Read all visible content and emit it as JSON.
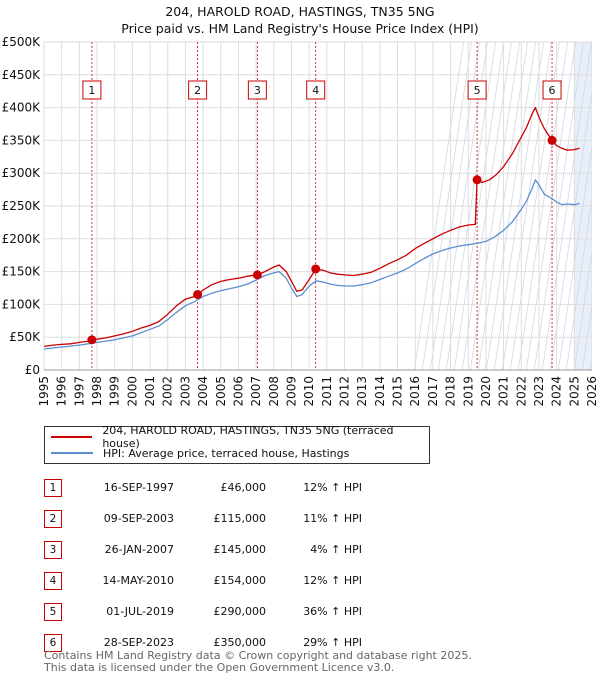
{
  "title_line1": "204, HAROLD ROAD, HASTINGS, TN35 5NG",
  "title_line2": "Price paid vs. HM Land Registry's House Price Index (HPI)",
  "legend": {
    "property": "204, HAROLD ROAD, HASTINGS, TN35 5NG (terraced house)",
    "hpi": "HPI: Average price, terraced house, Hastings"
  },
  "colors": {
    "property": "#cc0000",
    "hpi": "#5b8fd0",
    "grid": "#dddddd",
    "marker_line": "#cc0000",
    "shade": "#e9eff8"
  },
  "chart_data": {
    "type": "line",
    "title": "Price paid vs. HM Land Registry's House Price Index (HPI)",
    "xlabel": "",
    "ylabel": "",
    "xlim": [
      1995,
      2026
    ],
    "ylim": [
      0,
      500000
    ],
    "y_ticks": [
      0,
      50000,
      100000,
      150000,
      200000,
      250000,
      300000,
      350000,
      400000,
      450000,
      500000
    ],
    "y_tick_labels": [
      "£0",
      "£50K",
      "£100K",
      "£150K",
      "£200K",
      "£250K",
      "£300K",
      "£350K",
      "£400K",
      "£450K",
      "£500K"
    ],
    "x_ticks": [
      1995,
      1996,
      1997,
      1998,
      1999,
      2000,
      2001,
      2002,
      2003,
      2004,
      2005,
      2006,
      2007,
      2008,
      2009,
      2010,
      2011,
      2012,
      2013,
      2014,
      2015,
      2016,
      2017,
      2018,
      2019,
      2020,
      2021,
      2022,
      2023,
      2024,
      2025,
      2026
    ],
    "future_start": 2025.0,
    "series": [
      {
        "name": "204, HAROLD ROAD, HASTINGS, TN35 5NG (terraced house)",
        "points": [
          [
            1995.0,
            36000
          ],
          [
            1995.5,
            38000
          ],
          [
            1996.0,
            39000
          ],
          [
            1996.5,
            40000
          ],
          [
            1997.0,
            42000
          ],
          [
            1997.5,
            44000
          ],
          [
            1997.71,
            46000
          ],
          [
            1998.0,
            47000
          ],
          [
            1998.5,
            49000
          ],
          [
            1999.0,
            52000
          ],
          [
            1999.5,
            55000
          ],
          [
            2000.0,
            59000
          ],
          [
            2000.5,
            64000
          ],
          [
            2001.0,
            68000
          ],
          [
            2001.5,
            74000
          ],
          [
            2002.0,
            85000
          ],
          [
            2002.5,
            98000
          ],
          [
            2003.0,
            108000
          ],
          [
            2003.5,
            112000
          ],
          [
            2003.69,
            115000
          ],
          [
            2004.0,
            122000
          ],
          [
            2004.5,
            130000
          ],
          [
            2005.0,
            135000
          ],
          [
            2005.5,
            138000
          ],
          [
            2006.0,
            140000
          ],
          [
            2006.5,
            143000
          ],
          [
            2007.07,
            145000
          ],
          [
            2007.5,
            150000
          ],
          [
            2008.0,
            157000
          ],
          [
            2008.3,
            160000
          ],
          [
            2008.7,
            150000
          ],
          [
            2009.0,
            135000
          ],
          [
            2009.3,
            120000
          ],
          [
            2009.6,
            122000
          ],
          [
            2010.0,
            138000
          ],
          [
            2010.37,
            154000
          ],
          [
            2010.8,
            152000
          ],
          [
            2011.2,
            148000
          ],
          [
            2011.6,
            146000
          ],
          [
            2012.0,
            145000
          ],
          [
            2012.5,
            144000
          ],
          [
            2013.0,
            146000
          ],
          [
            2013.5,
            149000
          ],
          [
            2014.0,
            155000
          ],
          [
            2014.5,
            162000
          ],
          [
            2015.0,
            168000
          ],
          [
            2015.5,
            175000
          ],
          [
            2016.0,
            185000
          ],
          [
            2016.5,
            193000
          ],
          [
            2017.0,
            200000
          ],
          [
            2017.5,
            207000
          ],
          [
            2018.0,
            213000
          ],
          [
            2018.5,
            218000
          ],
          [
            2019.0,
            221000
          ],
          [
            2019.4,
            222000
          ],
          [
            2019.5,
            290000
          ],
          [
            2019.8,
            286000
          ],
          [
            2020.2,
            290000
          ],
          [
            2020.6,
            298000
          ],
          [
            2021.0,
            310000
          ],
          [
            2021.5,
            330000
          ],
          [
            2022.0,
            355000
          ],
          [
            2022.3,
            370000
          ],
          [
            2022.6,
            390000
          ],
          [
            2022.8,
            400000
          ],
          [
            2023.0,
            385000
          ],
          [
            2023.3,
            368000
          ],
          [
            2023.74,
            350000
          ],
          [
            2024.0,
            342000
          ],
          [
            2024.3,
            338000
          ],
          [
            2024.6,
            335000
          ],
          [
            2025.0,
            336000
          ],
          [
            2025.3,
            338000
          ]
        ]
      },
      {
        "name": "HPI: Average price, terraced house, Hastings",
        "points": [
          [
            1995.0,
            32000
          ],
          [
            1995.5,
            33500
          ],
          [
            1996.0,
            35000
          ],
          [
            1996.5,
            36500
          ],
          [
            1997.0,
            38000
          ],
          [
            1997.5,
            40000
          ],
          [
            1998.0,
            42000
          ],
          [
            1998.5,
            44000
          ],
          [
            1999.0,
            46000
          ],
          [
            1999.5,
            49000
          ],
          [
            2000.0,
            52000
          ],
          [
            2000.5,
            57000
          ],
          [
            2001.0,
            62000
          ],
          [
            2001.5,
            67000
          ],
          [
            2002.0,
            77000
          ],
          [
            2002.5,
            88000
          ],
          [
            2003.0,
            98000
          ],
          [
            2003.5,
            104000
          ],
          [
            2004.0,
            112000
          ],
          [
            2004.5,
            117000
          ],
          [
            2005.0,
            121000
          ],
          [
            2005.5,
            124000
          ],
          [
            2006.0,
            127000
          ],
          [
            2006.5,
            131000
          ],
          [
            2007.0,
            137000
          ],
          [
            2007.5,
            144000
          ],
          [
            2008.0,
            148000
          ],
          [
            2008.3,
            150000
          ],
          [
            2008.7,
            140000
          ],
          [
            2009.0,
            125000
          ],
          [
            2009.3,
            112000
          ],
          [
            2009.6,
            115000
          ],
          [
            2010.0,
            128000
          ],
          [
            2010.4,
            136000
          ],
          [
            2010.8,
            134000
          ],
          [
            2011.2,
            131000
          ],
          [
            2011.6,
            129000
          ],
          [
            2012.0,
            128000
          ],
          [
            2012.5,
            128000
          ],
          [
            2013.0,
            130000
          ],
          [
            2013.5,
            133000
          ],
          [
            2014.0,
            138000
          ],
          [
            2014.5,
            143000
          ],
          [
            2015.0,
            148000
          ],
          [
            2015.5,
            154000
          ],
          [
            2016.0,
            162000
          ],
          [
            2016.5,
            170000
          ],
          [
            2017.0,
            177000
          ],
          [
            2017.5,
            182000
          ],
          [
            2018.0,
            186000
          ],
          [
            2018.5,
            189000
          ],
          [
            2019.0,
            191000
          ],
          [
            2019.5,
            193000
          ],
          [
            2020.0,
            196000
          ],
          [
            2020.5,
            203000
          ],
          [
            2021.0,
            213000
          ],
          [
            2021.5,
            226000
          ],
          [
            2022.0,
            245000
          ],
          [
            2022.3,
            258000
          ],
          [
            2022.6,
            276000
          ],
          [
            2022.8,
            290000
          ],
          [
            2023.0,
            282000
          ],
          [
            2023.3,
            268000
          ],
          [
            2023.7,
            262000
          ],
          [
            2024.0,
            256000
          ],
          [
            2024.3,
            252000
          ],
          [
            2024.6,
            253000
          ],
          [
            2025.0,
            252000
          ],
          [
            2025.3,
            254000
          ]
        ]
      }
    ],
    "sale_markers": [
      {
        "label": "1",
        "x": 1997.71,
        "y": 46000
      },
      {
        "label": "2",
        "x": 2003.69,
        "y": 115000
      },
      {
        "label": "3",
        "x": 2007.07,
        "y": 145000
      },
      {
        "label": "4",
        "x": 2010.37,
        "y": 154000
      },
      {
        "label": "5",
        "x": 2019.5,
        "y": 290000
      },
      {
        "label": "6",
        "x": 2023.74,
        "y": 350000
      }
    ]
  },
  "sales": [
    {
      "num": "1",
      "date": "16-SEP-1997",
      "price": "£46,000",
      "hpi": "12% ↑ HPI"
    },
    {
      "num": "2",
      "date": "09-SEP-2003",
      "price": "£115,000",
      "hpi": "11% ↑ HPI"
    },
    {
      "num": "3",
      "date": "26-JAN-2007",
      "price": "£145,000",
      "hpi": "4% ↑ HPI"
    },
    {
      "num": "4",
      "date": "14-MAY-2010",
      "price": "£154,000",
      "hpi": "12% ↑ HPI"
    },
    {
      "num": "5",
      "date": "01-JUL-2019",
      "price": "£290,000",
      "hpi": "36% ↑ HPI"
    },
    {
      "num": "6",
      "date": "28-SEP-2023",
      "price": "£350,000",
      "hpi": "29% ↑ HPI"
    }
  ],
  "footer": {
    "line1": "Contains HM Land Registry data © Crown copyright and database right 2025.",
    "line2": "This data is licensed under the Open Government Licence v3.0."
  }
}
